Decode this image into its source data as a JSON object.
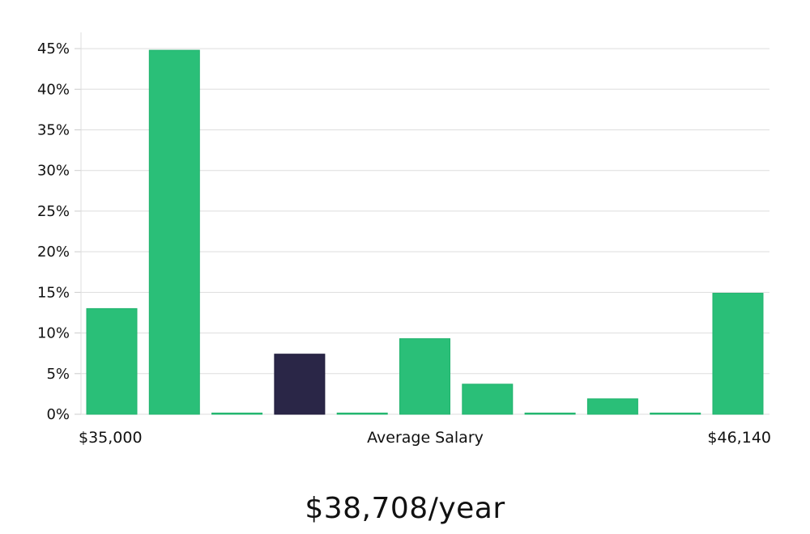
{
  "chart_data": {
    "type": "bar",
    "title": "",
    "xlabel": "Average Salary",
    "ylabel": "",
    "x_range_labels": {
      "min": "$35,000",
      "max": "$46,140"
    },
    "ylim": [
      0,
      47
    ],
    "yticks": [
      0,
      5,
      10,
      15,
      20,
      25,
      30,
      35,
      40,
      45
    ],
    "ytick_suffix": "%",
    "grid": true,
    "values": [
      13,
      44.8,
      0.1,
      7.4,
      0.1,
      9.3,
      3.7,
      0.1,
      1.9,
      0.1,
      14.9
    ],
    "highlight_index": 3,
    "colors": {
      "bar": "#2abf78",
      "highlight": "#2a2647",
      "grid": "#dddddd"
    }
  },
  "summary": {
    "salary_text": "$38,708/year"
  }
}
